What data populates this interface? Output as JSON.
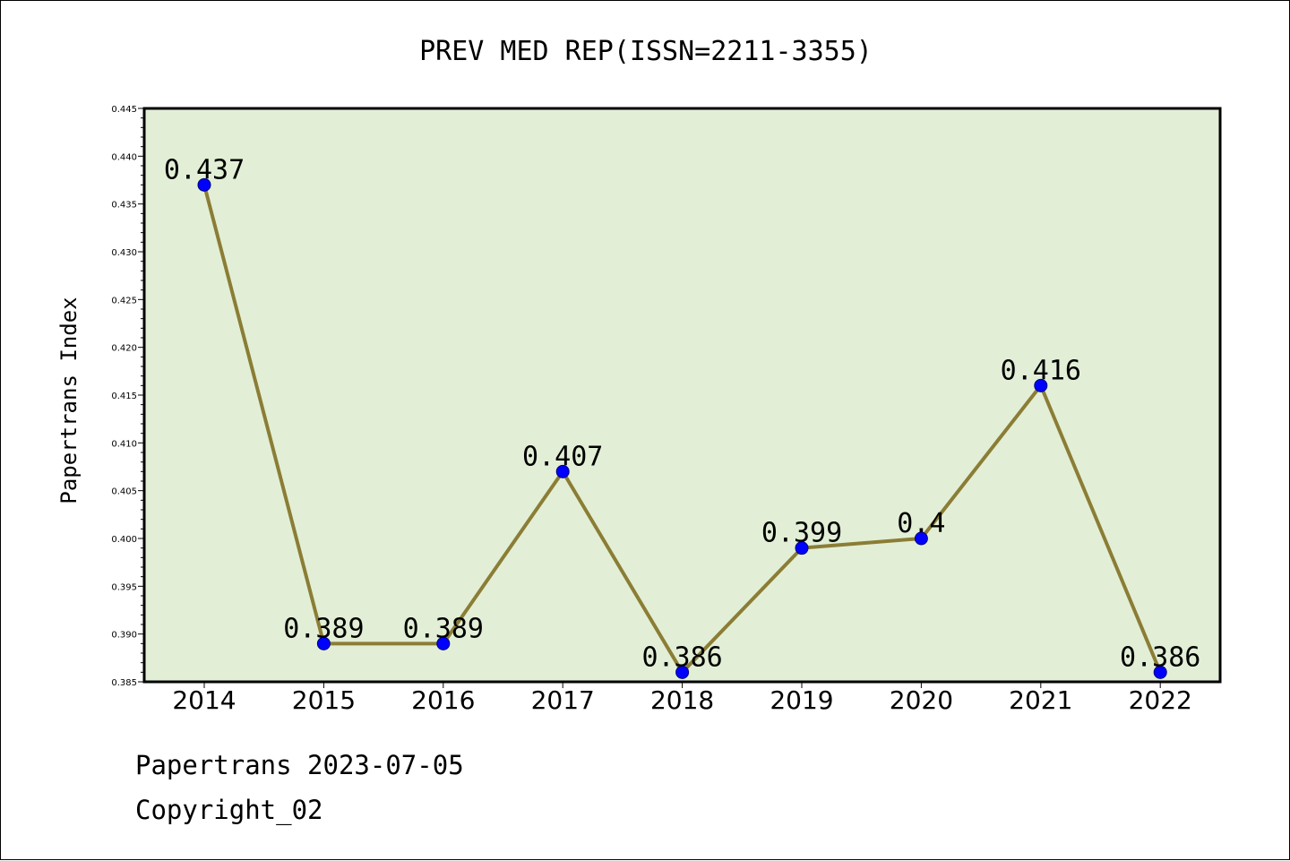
{
  "chart_data": {
    "type": "line",
    "title": "PREV MED REP(ISSN=2211-3355)",
    "xlabel": "",
    "ylabel": "Papertrans Index",
    "categories": [
      "2014",
      "2015",
      "2016",
      "2017",
      "2018",
      "2019",
      "2020",
      "2021",
      "2022"
    ],
    "series": [
      {
        "values": [
          0.437,
          0.389,
          0.389,
          0.407,
          0.386,
          0.399,
          0.4,
          0.416,
          0.386
        ],
        "labels": [
          "0.437",
          "0.389",
          "0.389",
          "0.407",
          "0.386",
          "0.399",
          "0.4",
          "0.416",
          "0.386"
        ]
      }
    ],
    "ylim": [
      0.385,
      0.445
    ],
    "yticks": [
      "0.385",
      "0.390",
      "0.395",
      "0.400",
      "0.405",
      "0.410",
      "0.415",
      "0.420",
      "0.425",
      "0.430",
      "0.435",
      "0.440",
      "0.445"
    ],
    "grid": false,
    "legend": "none",
    "colors": {
      "plot_background": "#e2efd6",
      "line": "#8b7d35",
      "marker": "#0000ff",
      "axes": "#000000"
    }
  },
  "footer": {
    "date_line": "Papertrans 2023-07-05",
    "copyright": "Copyright_02"
  }
}
